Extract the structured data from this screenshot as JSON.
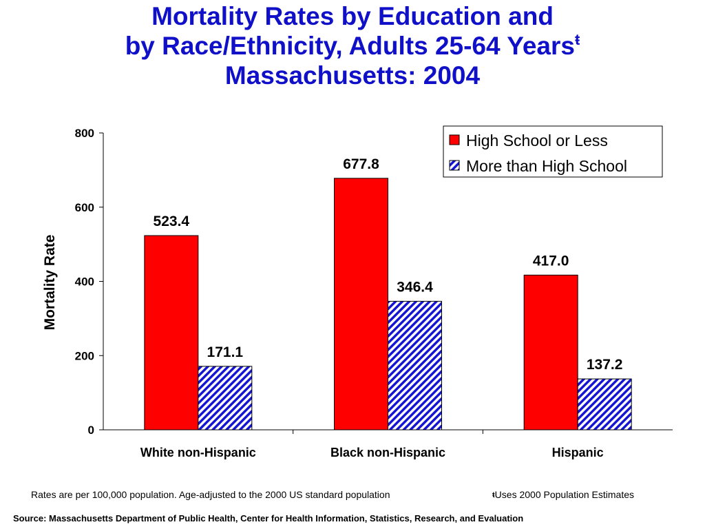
{
  "title": {
    "line1": "Mortality Rates by Education and",
    "line2": "by Race/Ethnicity, Adults 25-64 Years",
    "line2_mark": "ŧ",
    "line3": "Massachusetts: 2004"
  },
  "chart_data": {
    "type": "bar",
    "categories": [
      "White non-Hispanic",
      "Black non-Hispanic",
      "Hispanic"
    ],
    "series": [
      {
        "name": "High School or Less",
        "values": [
          523.4,
          677.8,
          417.0
        ],
        "labels": [
          "523.4",
          "677.8",
          "417.0"
        ],
        "color": "#ff0000",
        "pattern": "solid"
      },
      {
        "name": "More than High School",
        "values": [
          171.1,
          346.4,
          137.2
        ],
        "labels": [
          "171.1",
          "346.4",
          "137.2"
        ],
        "color": "#1414d2",
        "pattern": "diagonal-hatch"
      }
    ],
    "ylabel": "Mortality Rate",
    "xlabel": "",
    "ylim": [
      0,
      800
    ],
    "yticks": [
      0,
      200,
      400,
      600,
      800
    ],
    "grid": false,
    "legend": "top-right"
  },
  "footnotes": {
    "rates_note": "Rates are per 100,000 population.  Age-adjusted to the 2000 US standard population",
    "estimate_mark": "ŧ",
    "estimate_note": "Uses 2000 Population Estimates",
    "source": "Source:  Massachusetts Department of Public Health, Center for Health Information, Statistics, Research, and Evaluation"
  }
}
